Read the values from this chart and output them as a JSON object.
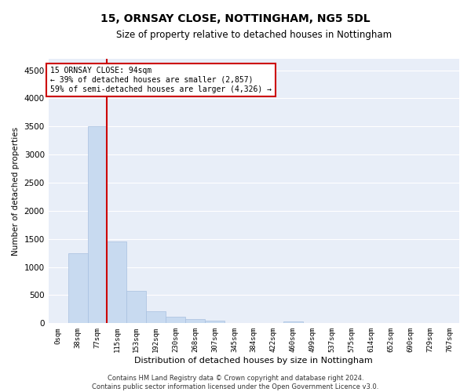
{
  "title": "15, ORNSAY CLOSE, NOTTINGHAM, NG5 5DL",
  "subtitle": "Size of property relative to detached houses in Nottingham",
  "xlabel": "Distribution of detached houses by size in Nottingham",
  "ylabel": "Number of detached properties",
  "categories": [
    "0sqm",
    "38sqm",
    "77sqm",
    "115sqm",
    "153sqm",
    "192sqm",
    "230sqm",
    "268sqm",
    "307sqm",
    "345sqm",
    "384sqm",
    "422sqm",
    "460sqm",
    "499sqm",
    "537sqm",
    "575sqm",
    "614sqm",
    "652sqm",
    "690sqm",
    "729sqm",
    "767sqm"
  ],
  "bar_heights": [
    5,
    1250,
    3500,
    1460,
    570,
    215,
    110,
    70,
    45,
    0,
    0,
    0,
    35,
    0,
    0,
    0,
    0,
    0,
    0,
    0,
    0
  ],
  "bar_color": "#c8daf0",
  "bar_edge_color": "#a8c0e0",
  "ylim": [
    0,
    4700
  ],
  "yticks": [
    0,
    500,
    1000,
    1500,
    2000,
    2500,
    3000,
    3500,
    4000,
    4500
  ],
  "property_line_x": 2.5,
  "annotation_text_line1": "15 ORNSAY CLOSE: 94sqm",
  "annotation_text_line2": "← 39% of detached houses are smaller (2,857)",
  "annotation_text_line3": "59% of semi-detached houses are larger (4,326) →",
  "annotation_box_color": "#ffffff",
  "annotation_box_edge": "#cc0000",
  "line_color": "#cc0000",
  "background_color": "#e8eef8",
  "footer_line1": "Contains HM Land Registry data © Crown copyright and database right 2024.",
  "footer_line2": "Contains public sector information licensed under the Open Government Licence v3.0."
}
